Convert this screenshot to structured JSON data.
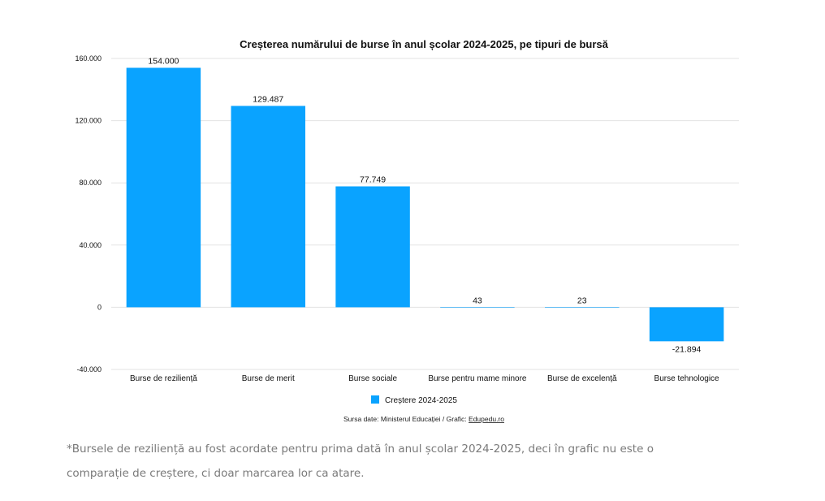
{
  "chart_data": {
    "type": "bar",
    "title": "Creșterea numărului de burse în anul școlar 2024-2025, pe tipuri de bursă",
    "categories": [
      "Burse de reziliență",
      "Burse de merit",
      "Burse sociale",
      "Burse pentru mame minore",
      "Burse de excelență",
      "Burse tehnologice"
    ],
    "series": [
      {
        "name": "Creștere 2024-2025",
        "values": [
          154000,
          129487,
          77749,
          43,
          23,
          -21894
        ],
        "color": "#0aa3ff"
      }
    ],
    "data_labels": [
      "154.000",
      "129.487",
      "77.749",
      "43",
      "23",
      "-21.894"
    ],
    "ylim": [
      -40000,
      160000
    ],
    "yticks": [
      160000,
      120000,
      80000,
      40000,
      0,
      -40000
    ],
    "ytick_labels": [
      "160.000",
      "120.000",
      "80.000",
      "40.000",
      "0",
      "-40.000"
    ],
    "xlabel": "",
    "ylabel": "",
    "grid": true,
    "legend_position": "bottom",
    "source": "Sursa date: Ministerul Educației / Grafic: ",
    "source_link": "Edupedu.ro"
  },
  "footnote": "*Bursele de reziliență au fost acordate pentru prima dată în anul școlar 2024-2025, deci în grafic nu este o comparație de creștere, ci doar marcarea lor ca atare."
}
